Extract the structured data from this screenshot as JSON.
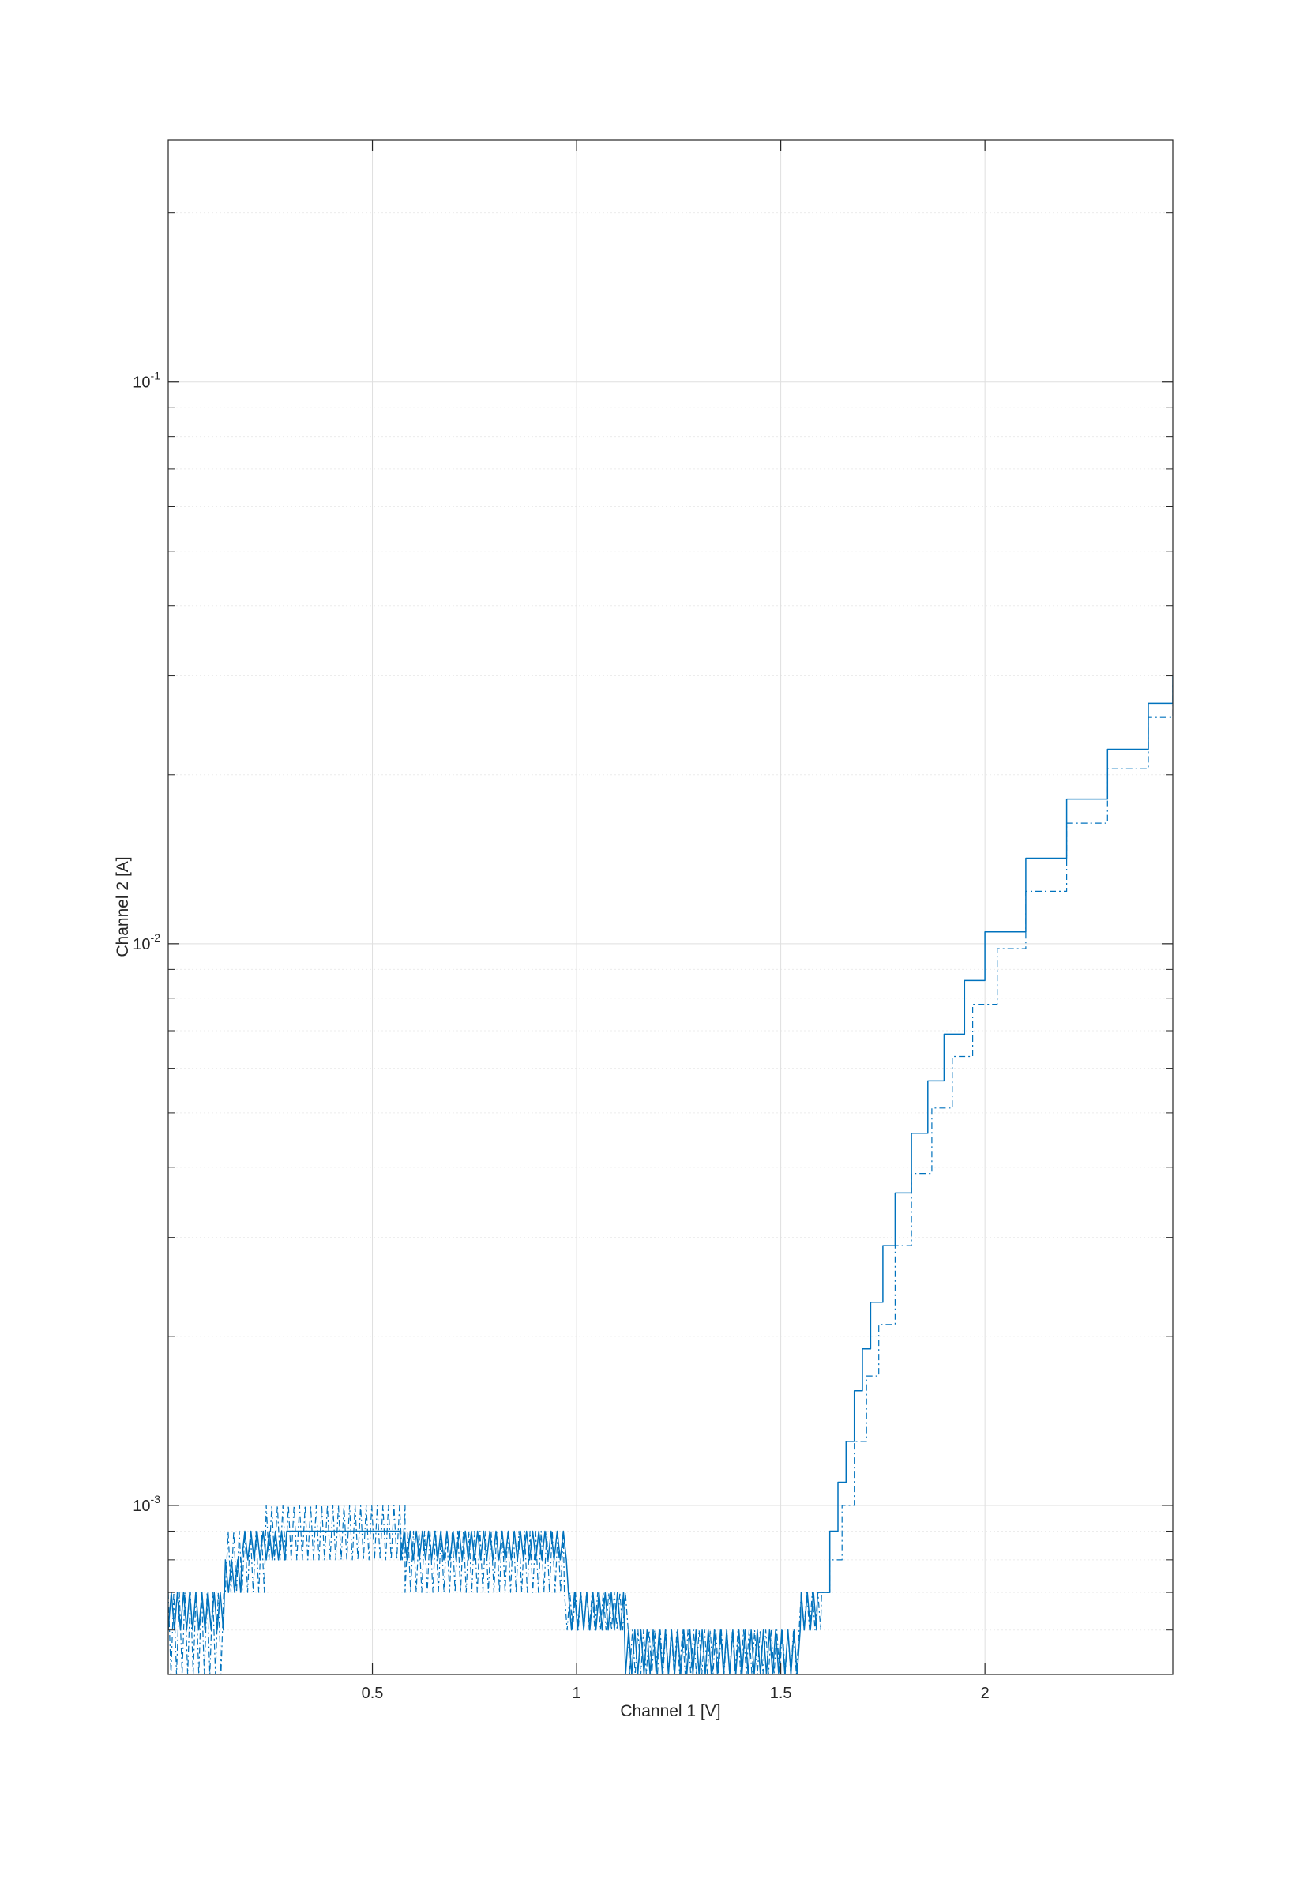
{
  "chart_data": {
    "type": "line",
    "title": "",
    "xlabel": "Channel 1 [V]",
    "ylabel": "Channel 2 [A]",
    "xlim": [
      0.0,
      2.46
    ],
    "ylim": [
      0.0005,
      0.27
    ],
    "yscale": "log",
    "grid": true,
    "minor_grid": true,
    "legend": "none",
    "colors": {
      "series": "#0072bd",
      "axes": "#262626",
      "grid": "#dfdfdf",
      "minor_grid": "#ececec"
    },
    "x_ticks": [
      {
        "value": 0.5,
        "label": "0.5"
      },
      {
        "value": 1,
        "label": "1"
      },
      {
        "value": 1.5,
        "label": "1.5"
      },
      {
        "value": 2,
        "label": "2"
      }
    ],
    "y_ticks": [
      {
        "value": 0.001,
        "base": "10",
        "exp": "-3"
      },
      {
        "value": 0.01,
        "base": "10",
        "exp": "-2"
      },
      {
        "value": 0.1,
        "base": "10",
        "exp": "-1"
      }
    ],
    "series": [
      {
        "style": "solid",
        "levels": [
          {
            "x": [
              0.0,
              0.14
            ],
            "low": 0.0006,
            "high": 0.0007
          },
          {
            "x": [
              0.14,
              0.18
            ],
            "low": 0.0007,
            "high": 0.0008
          },
          {
            "x": [
              0.18,
              0.29
            ],
            "low": 0.0008,
            "high": 0.0009
          },
          {
            "x": [
              0.29,
              0.57
            ],
            "low": 0.0009,
            "high": 0.0009
          },
          {
            "x": [
              0.57,
              0.98
            ],
            "low": 0.0008,
            "high": 0.0009
          },
          {
            "x": [
              0.98,
              1.12
            ],
            "low": 0.0006,
            "high": 0.0007
          },
          {
            "x": [
              1.12,
              1.55
            ],
            "low": 0.0005,
            "high": 0.0006
          },
          {
            "x": [
              1.55,
              1.59
            ],
            "low": 0.0006,
            "high": 0.0007
          }
        ],
        "x": [
          1.59,
          1.62,
          1.64,
          1.66,
          1.68,
          1.7,
          1.72,
          1.75,
          1.78,
          1.82,
          1.86,
          1.9,
          1.95,
          2.0,
          2.1,
          2.2,
          2.3,
          2.4,
          2.46
        ],
        "y": [
          0.0007,
          0.0009,
          0.0011,
          0.0013,
          0.0016,
          0.0019,
          0.0023,
          0.0029,
          0.0036,
          0.0046,
          0.0057,
          0.0069,
          0.0086,
          0.0105,
          0.0142,
          0.0181,
          0.0222,
          0.0268,
          0.03
        ]
      },
      {
        "style": "dash-dot",
        "levels": [
          {
            "x": [
              0.0,
              0.14
            ],
            "low": 0.0005,
            "high": 0.0007
          },
          {
            "x": [
              0.14,
              0.24
            ],
            "low": 0.0007,
            "high": 0.0009
          },
          {
            "x": [
              0.24,
              0.58
            ],
            "low": 0.0008,
            "high": 0.001
          },
          {
            "x": [
              0.58,
              0.97
            ],
            "low": 0.0007,
            "high": 0.0009
          },
          {
            "x": [
              0.97,
              1.13
            ],
            "low": 0.0006,
            "high": 0.0007
          },
          {
            "x": [
              1.13,
              1.55
            ],
            "low": 0.0005,
            "high": 0.0006
          },
          {
            "x": [
              1.55,
              1.6
            ],
            "low": 0.0006,
            "high": 0.0007
          }
        ],
        "x": [
          1.6,
          1.62,
          1.65,
          1.68,
          1.71,
          1.74,
          1.78,
          1.82,
          1.87,
          1.92,
          1.97,
          2.03,
          2.1,
          2.2,
          2.3,
          2.4,
          2.46
        ],
        "y": [
          0.0007,
          0.0008,
          0.001,
          0.0013,
          0.0017,
          0.0021,
          0.0029,
          0.0039,
          0.0051,
          0.0063,
          0.0078,
          0.0098,
          0.0124,
          0.0164,
          0.0205,
          0.0253,
          0.0289
        ]
      }
    ]
  }
}
